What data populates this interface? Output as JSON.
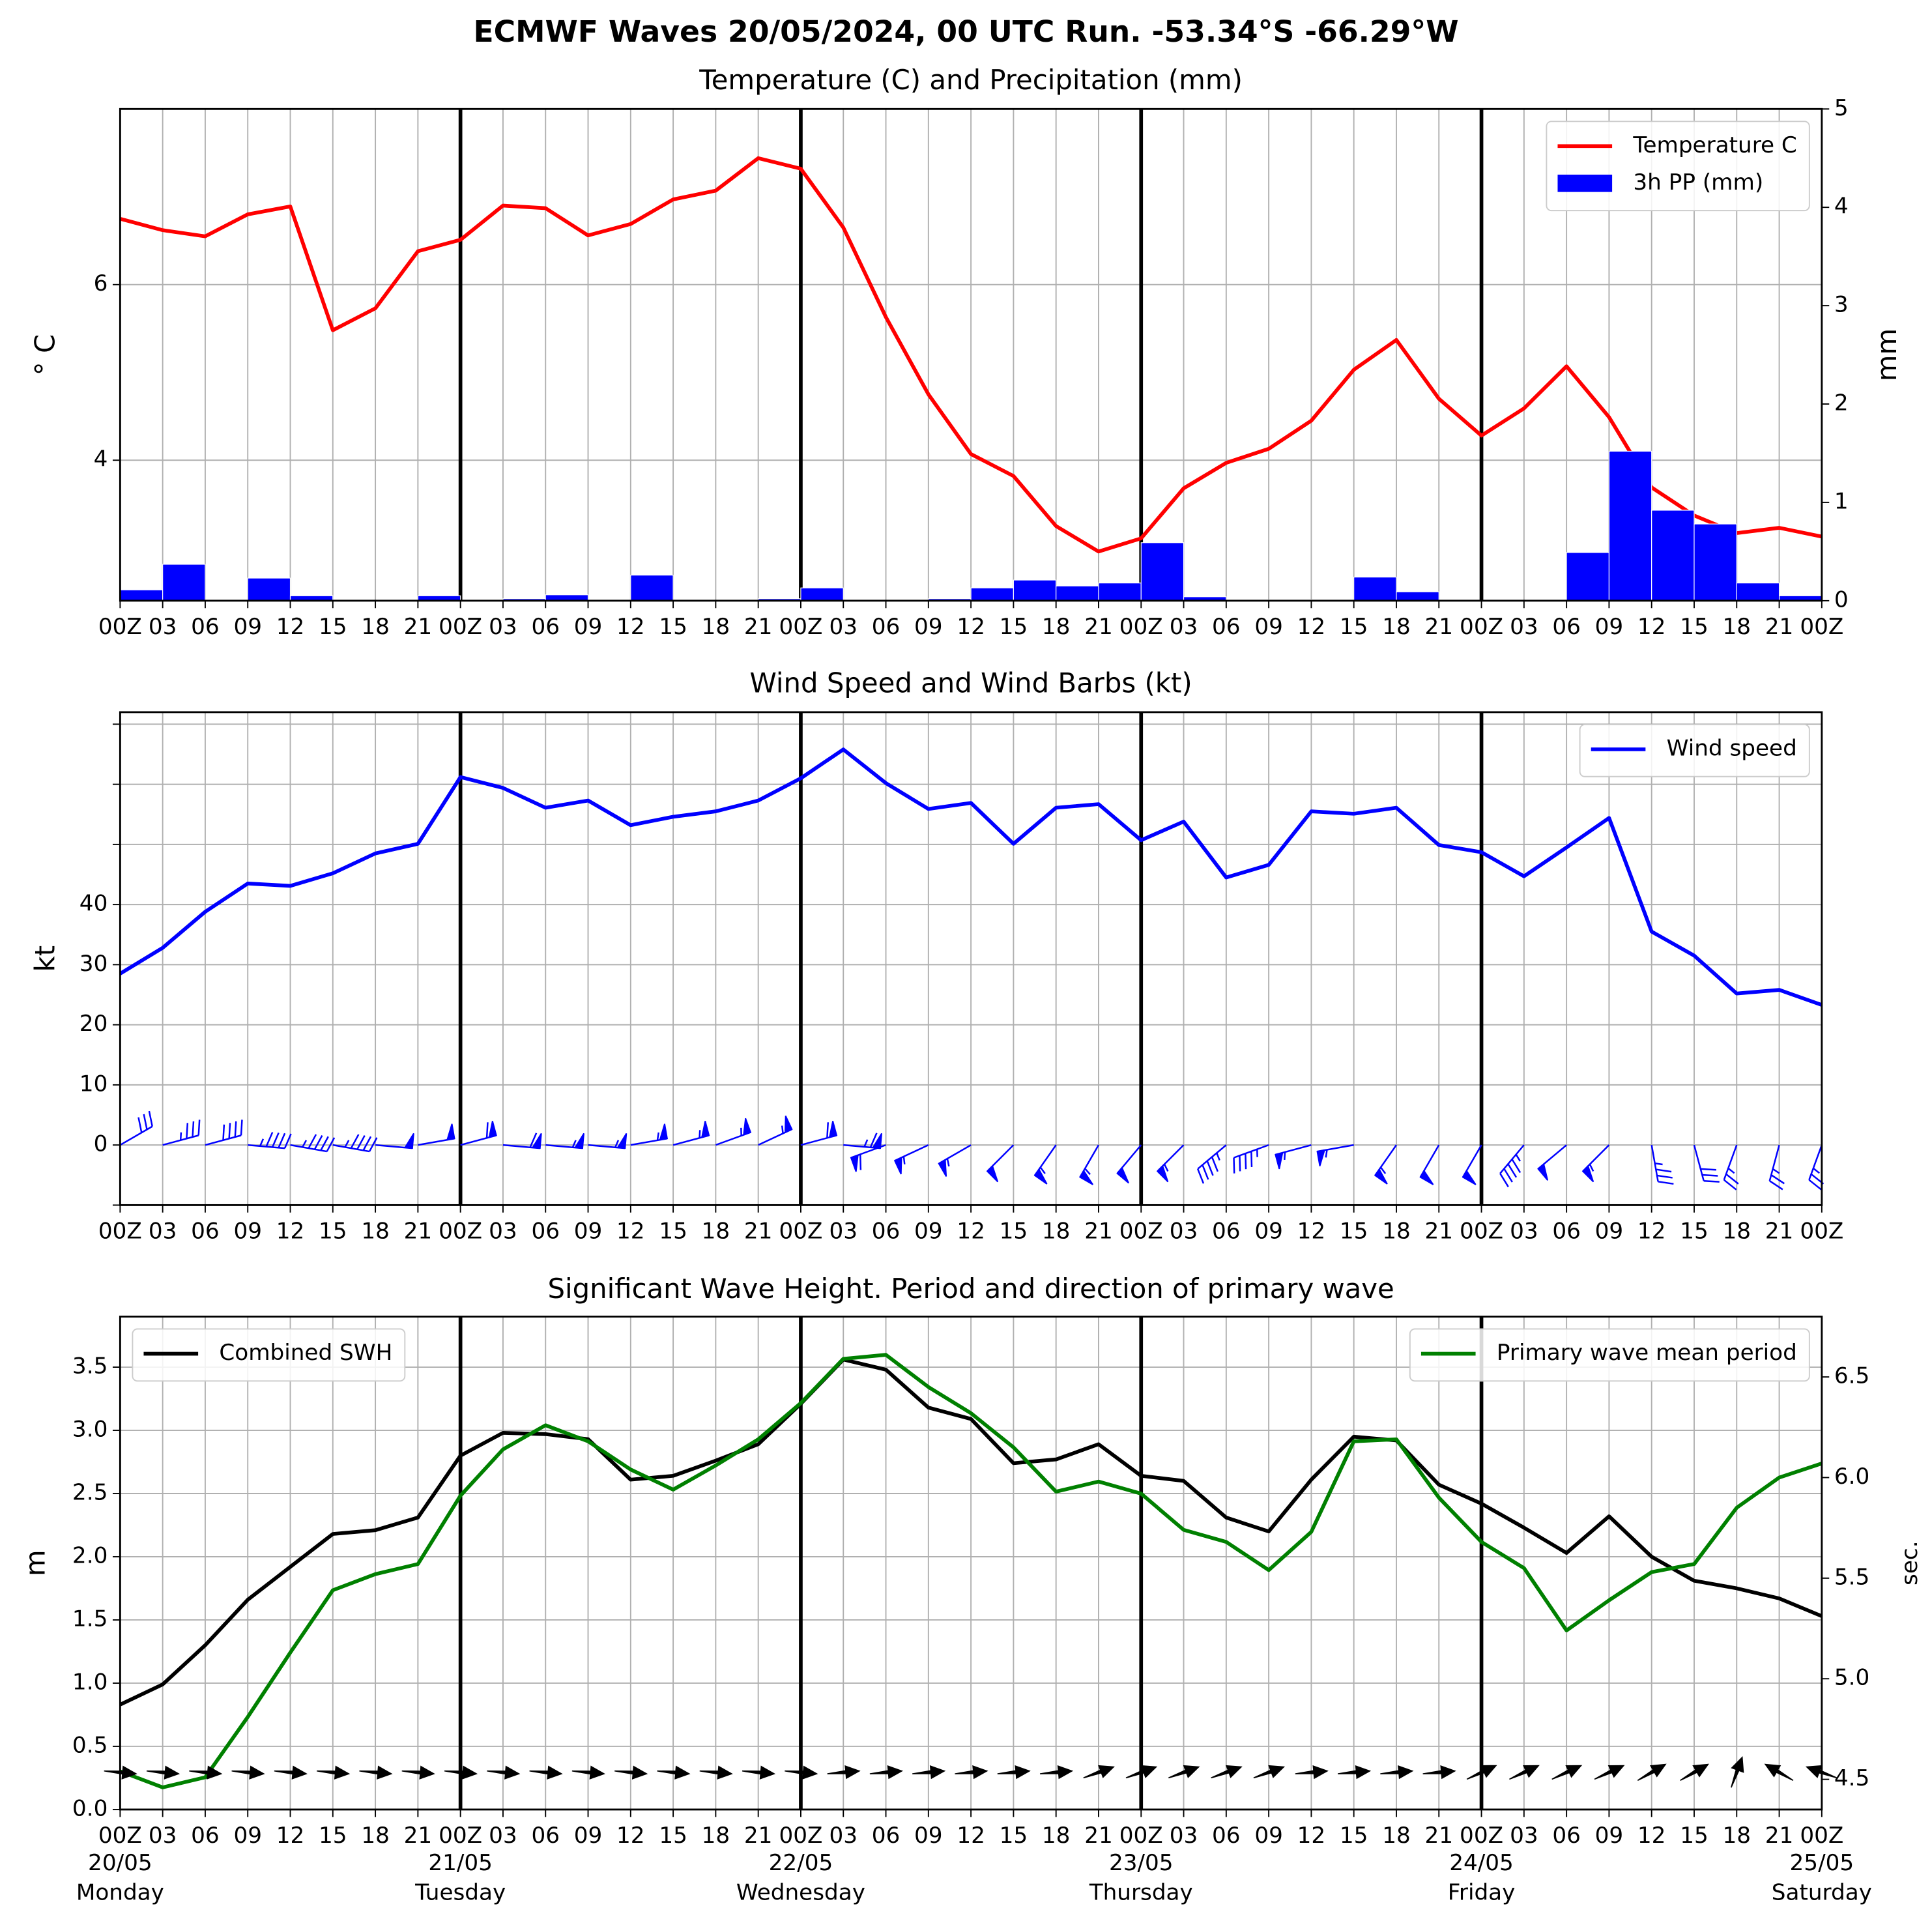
{
  "title": "ECMWF Waves 20/05/2024, 00 UTC Run. -53.34°S -66.29°W",
  "chart_data": [
    {
      "type": "line",
      "title": "Temperature (C) and Precipitation (mm)",
      "categories": [
        "00Z",
        "03",
        "06",
        "09",
        "12",
        "15",
        "18",
        "21",
        "00Z",
        "03",
        "06",
        "09",
        "12",
        "15",
        "18",
        "21",
        "00Z",
        "03",
        "06",
        "09",
        "12",
        "15",
        "18",
        "21",
        "00Z",
        "03",
        "06",
        "09",
        "12",
        "15",
        "18",
        "21",
        "00Z",
        "03",
        "06",
        "09",
        "12",
        "15",
        "18",
        "21",
        "00Z"
      ],
      "ylabel": "° C",
      "y2label": "mm",
      "ylim": [
        2.4,
        8
      ],
      "yticks": [
        4,
        6
      ],
      "y2lim": [
        0,
        5
      ],
      "y2ticks": [
        0,
        1,
        2,
        3,
        4,
        5
      ],
      "grid": true,
      "legend": "upper right",
      "series": [
        {
          "name": "Temperature C",
          "type": "line",
          "color": "#ff0000",
          "values": [
            6.75,
            6.62,
            6.55,
            6.8,
            6.89,
            5.48,
            5.73,
            6.38,
            6.51,
            6.9,
            6.87,
            6.56,
            6.69,
            6.97,
            7.07,
            7.44,
            7.32,
            6.65,
            5.63,
            4.75,
            4.07,
            3.82,
            3.25,
            2.96,
            3.11,
            3.68,
            3.97,
            4.13,
            4.45,
            5.03,
            5.37,
            4.7,
            4.28,
            4.59,
            5.07,
            4.49,
            3.69,
            3.37,
            3.17,
            3.23,
            3.13
          ]
        },
        {
          "name": "3h PP (mm)",
          "type": "bar",
          "axis": "y2",
          "color": "#0000ff",
          "values": [
            0.11,
            0.37,
            0,
            0.23,
            0.05,
            0,
            0,
            0.05,
            0,
            0.02,
            0.06,
            0,
            0.26,
            0,
            0,
            0.02,
            0.13,
            0,
            0,
            0.02,
            0.13,
            0.21,
            0.15,
            0.18,
            0.59,
            0.04,
            0,
            0.01,
            0,
            0.24,
            0.09,
            0,
            0,
            0,
            0.49,
            1.52,
            0.92,
            0.78,
            0.18,
            0.05,
            null
          ]
        }
      ]
    },
    {
      "type": "line",
      "title": "Wind Speed and Wind Barbs (kt)",
      "categories": [
        "00Z",
        "03",
        "06",
        "09",
        "12",
        "15",
        "18",
        "21",
        "00Z",
        "03",
        "06",
        "09",
        "12",
        "15",
        "18",
        "21",
        "00Z",
        "03",
        "06",
        "09",
        "12",
        "15",
        "18",
        "21",
        "00Z",
        "03",
        "06",
        "09",
        "12",
        "15",
        "18",
        "21",
        "00Z",
        "03",
        "06",
        "09",
        "12",
        "15",
        "18",
        "21",
        "00Z"
      ],
      "ylabel": "kt",
      "ylim": [
        -10,
        72
      ],
      "yticks": [
        {
          "value": -10,
          "label": null
        },
        0,
        10,
        20,
        30,
        40,
        {
          "value": 50,
          "label": null
        },
        {
          "value": 60,
          "label": null
        },
        {
          "value": 70,
          "label": null
        }
      ],
      "grid": true,
      "legend": "upper right",
      "series": [
        {
          "name": "Wind speed",
          "type": "line",
          "color": "#0000ff",
          "values": [
            28.5,
            32.8,
            38.8,
            43.5,
            43.1,
            45.2,
            48.5,
            50.1,
            61.2,
            59.4,
            56.1,
            57.3,
            53.2,
            54.6,
            55.5,
            57.3,
            61.0,
            65.8,
            60.2,
            55.9,
            56.9,
            50.1,
            56.1,
            56.7,
            50.7,
            53.8,
            44.5,
            46.6,
            55.5,
            55.1,
            56.1,
            49.9,
            48.7,
            44.7,
            49.5,
            54.4,
            35.5,
            31.5,
            25.2,
            25.8,
            23.3
          ]
        }
      ],
      "barb_color": "#0000ff",
      "wind_direction": [
        60,
        75,
        75,
        95,
        100,
        100,
        95,
        80,
        75,
        95,
        95,
        95,
        80,
        75,
        70,
        65,
        75,
        95,
        250,
        245,
        240,
        225,
        215,
        210,
        220,
        225,
        230,
        250,
        255,
        260,
        215,
        210,
        210,
        220,
        230,
        225,
        170,
        165,
        200,
        195,
        200
      ]
    },
    {
      "type": "line",
      "title": "Significant Wave Height. Period and direction of primary wave",
      "categories": [
        "00Z",
        "03",
        "06",
        "09",
        "12",
        "15",
        "18",
        "21",
        "00Z",
        "03",
        "06",
        "09",
        "12",
        "15",
        "18",
        "21",
        "00Z",
        "03",
        "06",
        "09",
        "12",
        "15",
        "18",
        "21",
        "00Z",
        "03",
        "06",
        "09",
        "12",
        "15",
        "18",
        "21",
        "00Z",
        "03",
        "06",
        "09",
        "12",
        "15",
        "18",
        "21",
        "00Z"
      ],
      "dates": [
        "20/05",
        "21/05",
        "22/05",
        "23/05",
        "24/05",
        "25/05"
      ],
      "weekdays": [
        "Monday",
        "Tuesday",
        "Wednesday",
        "Thursday",
        "Friday",
        "Saturday"
      ],
      "ylabel": "m",
      "y2label": "sec.",
      "y2label_color": "#008000",
      "ylim": [
        0,
        3.9
      ],
      "yticks": [
        {
          "value": 0,
          "label": "0.0"
        },
        0.5,
        {
          "value": 1,
          "label": "1.0"
        },
        1.5,
        {
          "value": 2,
          "label": "2.0"
        },
        2.5,
        {
          "value": 3,
          "label": "3.0"
        },
        3.5
      ],
      "y2lim": [
        4.35,
        6.8
      ],
      "y2ticks": [
        4.5,
        {
          "value": 5,
          "label": "5.0"
        },
        5.5,
        {
          "value": 6,
          "label": "6.0"
        },
        6.5
      ],
      "grid": true,
      "series": [
        {
          "name": "Combined SWH",
          "type": "line",
          "color": "#000000",
          "legend": "upper left",
          "values": [
            0.83,
            0.99,
            1.3,
            1.66,
            1.92,
            2.18,
            2.21,
            2.31,
            2.8,
            2.98,
            2.97,
            2.93,
            2.61,
            2.64,
            2.76,
            2.89,
            3.21,
            3.56,
            3.48,
            3.18,
            3.09,
            2.74,
            2.77,
            2.89,
            2.64,
            2.6,
            2.31,
            2.2,
            2.61,
            2.95,
            2.92,
            2.57,
            2.42,
            2.23,
            2.03,
            2.32,
            2.0,
            1.81,
            1.75,
            1.67,
            1.53
          ]
        },
        {
          "name": "Primary wave mean period",
          "type": "line",
          "axis": "y2",
          "color": "#008000",
          "legend": "upper right",
          "values": [
            4.54,
            4.46,
            4.51,
            4.81,
            5.13,
            5.44,
            5.52,
            5.57,
            5.91,
            6.14,
            6.26,
            6.18,
            6.04,
            5.94,
            6.06,
            6.19,
            6.37,
            6.59,
            6.61,
            6.45,
            6.32,
            6.15,
            5.93,
            5.98,
            5.92,
            5.74,
            5.68,
            5.54,
            5.73,
            6.18,
            6.19,
            5.9,
            5.68,
            5.55,
            5.24,
            5.39,
            5.53,
            5.57,
            5.85,
            6.0,
            6.07
          ]
        }
      ],
      "arrow_color": "#000000",
      "wave_direction": [
        95,
        95,
        95,
        95,
        95,
        95,
        95,
        95,
        95,
        95,
        95,
        95,
        95,
        95,
        95,
        95,
        95,
        85,
        85,
        85,
        85,
        85,
        85,
        70,
        70,
        70,
        70,
        70,
        85,
        85,
        85,
        85,
        65,
        65,
        65,
        65,
        60,
        60,
        20,
        300,
        290
      ]
    }
  ]
}
